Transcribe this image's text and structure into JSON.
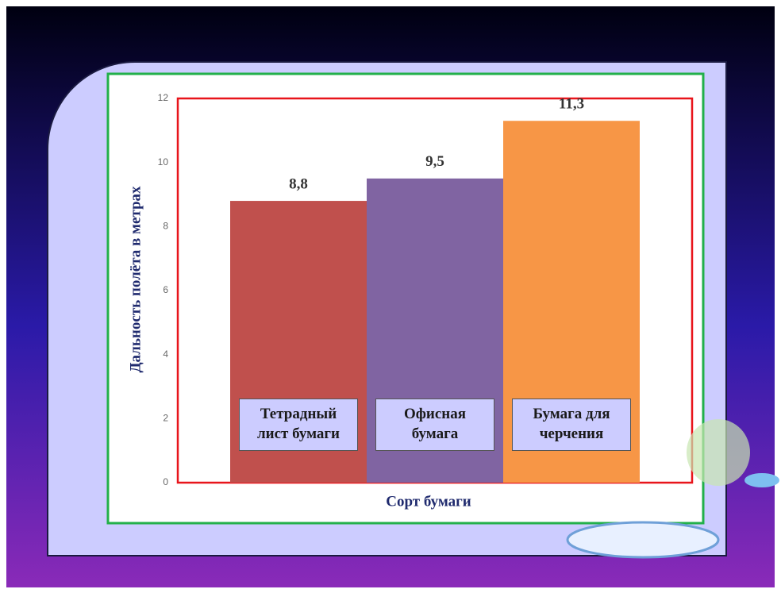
{
  "chart_data": {
    "type": "bar",
    "y_axis_title": "Дальность полёта в метрах",
    "x_axis_title": "Сорт бумаги",
    "categories": [
      "Тетрадный лист бумаги",
      "Офисная бумага",
      "Бумага для черчения"
    ],
    "values": [
      8.8,
      9.5,
      11.3
    ],
    "value_labels": [
      "8,8",
      "9,5",
      "11,3"
    ],
    "colors": [
      "#c0504d",
      "#8064a2",
      "#f79646"
    ],
    "ylim": [
      0,
      12
    ],
    "yticks": [
      0,
      2,
      4,
      6,
      8,
      10,
      12
    ],
    "grid": false
  }
}
